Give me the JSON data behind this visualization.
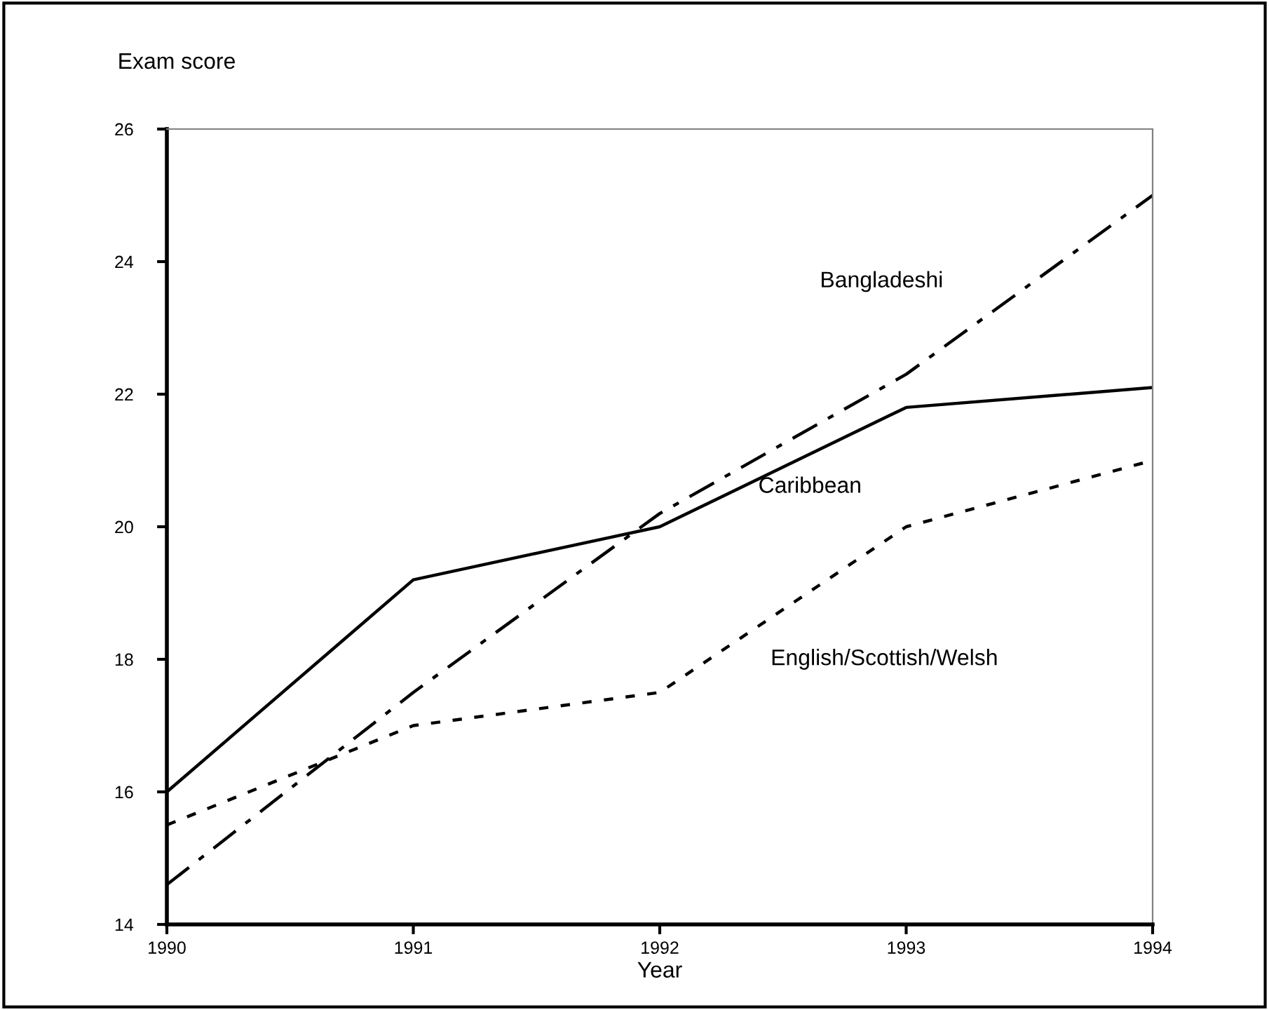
{
  "chart_data": {
    "type": "line",
    "xlabel": "Year",
    "ylabel": "Exam score",
    "x": [
      1990,
      1991,
      1992,
      1993,
      1994
    ],
    "series": [
      {
        "name": "Caribbean",
        "color": "#000000",
        "line_style": "solid",
        "values": [
          16.0,
          19.2,
          20.0,
          21.8,
          22.1
        ]
      },
      {
        "name": "Bangladeshi",
        "color": "#000000",
        "line_style": "dashed",
        "values": [
          14.6,
          17.5,
          20.2,
          22.3,
          25.0
        ]
      },
      {
        "name": "English/Scottish/Welsh",
        "color": "#000000",
        "line_style": "dotted",
        "values": [
          15.5,
          17.0,
          17.5,
          20.0,
          21.0
        ]
      }
    ],
    "xlim": [
      1990,
      1994
    ],
    "xticks": [
      1990,
      1991,
      1992,
      1993,
      1994
    ],
    "ylim": [
      14,
      26
    ],
    "yticks": [
      14,
      16,
      18,
      20,
      22,
      24,
      26
    ],
    "grid": false,
    "legend": false,
    "marker": "none"
  }
}
